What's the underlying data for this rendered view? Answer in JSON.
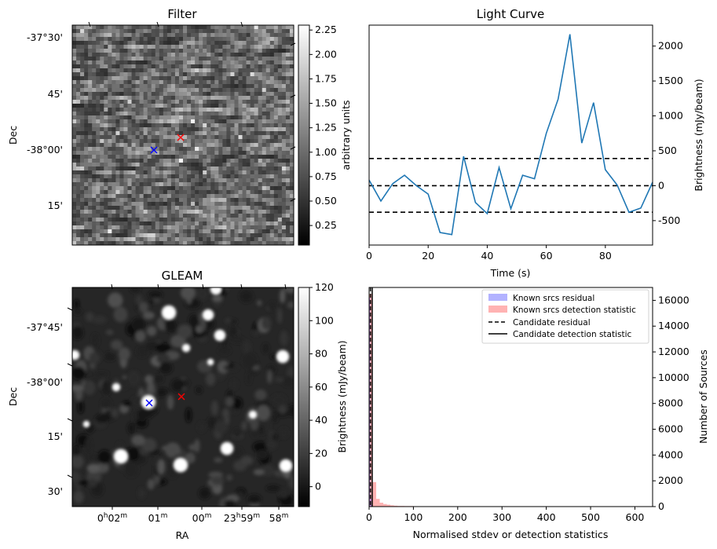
{
  "chart_data": [
    {
      "panel": "filter-image",
      "type": "heatmap",
      "title": "Filter",
      "ylabel": "Dec",
      "ytick_labels": [
        "-37°30'",
        "45'",
        "-38°00'",
        "15'"
      ],
      "colorbar": {
        "label": "arbitrary units",
        "range": [
          0.05,
          2.3
        ],
        "ticks": [
          "0.25",
          "0.50",
          "0.75",
          "1.00",
          "1.25",
          "1.50",
          "1.75",
          "2.00",
          "2.25"
        ]
      },
      "markers": [
        {
          "symbol": "x",
          "color": "#0000ff"
        },
        {
          "symbol": "x",
          "color": "#ff0000"
        }
      ]
    },
    {
      "panel": "light-curve",
      "type": "line",
      "title": "Light Curve",
      "xlabel": "Time (s)",
      "ylabel": "Brightness (mJy/beam)",
      "xlim": [
        0,
        96
      ],
      "ylim": [
        -850,
        2300
      ],
      "xticks": [
        0,
        20,
        40,
        60,
        80
      ],
      "yticks": [
        -500,
        0,
        500,
        1000,
        1500,
        2000
      ],
      "series": [
        {
          "color": "#1f77b4",
          "x": [
            0,
            4,
            8,
            12,
            16,
            20,
            24,
            28,
            32,
            36,
            40,
            44,
            48,
            52,
            56,
            60,
            64,
            68,
            72,
            76,
            80,
            84,
            88,
            92,
            96
          ],
          "y": [
            80,
            -220,
            30,
            150,
            0,
            -120,
            -670,
            -700,
            420,
            -240,
            -400,
            260,
            -330,
            150,
            100,
            750,
            1240,
            2170,
            610,
            1190,
            230,
            10,
            -380,
            -320,
            50
          ]
        }
      ],
      "hlines": [
        {
          "y": 390,
          "style": "dashed",
          "color": "#000000"
        },
        {
          "y": 0,
          "style": "dashed",
          "color": "#000000"
        },
        {
          "y": -380,
          "style": "dashed",
          "color": "#000000"
        }
      ]
    },
    {
      "panel": "gleam-image",
      "type": "heatmap",
      "title": "GLEAM",
      "xlabel": "RA",
      "ylabel": "Dec",
      "xtick_labels": [
        "0h02m",
        "01m",
        "00m",
        "23h59m",
        "58m"
      ],
      "ytick_labels": [
        "-37°45'",
        "-38°00'",
        "15'",
        "30'"
      ],
      "colorbar": {
        "label": "Brightness (mJy/beam)",
        "range": [
          -12,
          120
        ],
        "ticks": [
          "0",
          "20",
          "40",
          "60",
          "80",
          "100",
          "120"
        ]
      },
      "markers": [
        {
          "symbol": "x",
          "color": "#0000ff"
        },
        {
          "symbol": "x",
          "color": "#ff0000"
        }
      ]
    },
    {
      "panel": "histogram",
      "type": "bar",
      "title": "",
      "xlabel": "Normalised stdev or detection statistics",
      "ylabel": "Number of Sources",
      "xlim": [
        0,
        640
      ],
      "ylim": [
        0,
        17000
      ],
      "xticks": [
        0,
        100,
        200,
        300,
        400,
        500,
        600
      ],
      "yticks": [
        0,
        2000,
        4000,
        6000,
        8000,
        10000,
        12000,
        14000,
        16000
      ],
      "legend_position": "top-right",
      "legend": [
        {
          "label": "Known srcs residual",
          "style": "patch",
          "color": "#0000ff"
        },
        {
          "label": "Known srcs detection statistic",
          "style": "patch",
          "color": "#ff0000"
        },
        {
          "label": "Candidate residual",
          "style": "dashed",
          "color": "#000000"
        },
        {
          "label": "Candidate detection statistic",
          "style": "solid",
          "color": "#000000"
        }
      ],
      "series": [
        {
          "name": "Known srcs residual",
          "bins": [
            0,
            2.5,
            5,
            7.5
          ],
          "counts": [
            16200,
            600,
            120,
            30
          ]
        },
        {
          "name": "Known srcs detection statistic",
          "bin_edges": [
            0,
            8,
            16,
            24,
            32,
            40,
            48,
            56,
            64,
            80,
            100,
            150,
            200,
            250,
            300
          ],
          "counts": [
            16500,
            1900,
            600,
            300,
            200,
            150,
            100,
            70,
            50,
            40,
            30,
            20,
            15,
            10
          ]
        }
      ],
      "vlines": [
        {
          "name": "Candidate residual",
          "x": 3,
          "style": "dashed"
        },
        {
          "name": "Candidate detection statistic",
          "x": 7,
          "style": "solid"
        }
      ]
    }
  ]
}
